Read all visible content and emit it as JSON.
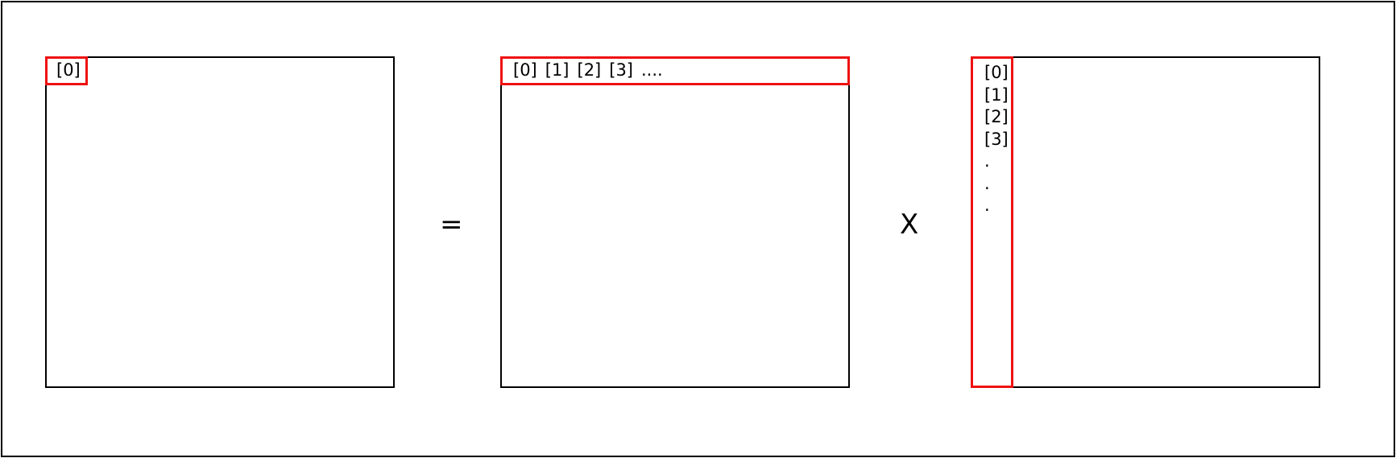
{
  "result_matrix": {
    "highlighted_index": "[0]"
  },
  "equals_sign": "=",
  "left_matrix": {
    "row_indices": [
      "[0]",
      "[1]",
      "[2]",
      "[3]",
      "...."
    ]
  },
  "times_sign": "X",
  "right_matrix": {
    "column_indices": [
      "[0]",
      "[1]",
      "[2]",
      "[3]",
      ".",
      ".",
      "."
    ]
  },
  "colors": {
    "highlight": "#ee1111",
    "outline": "#000000",
    "background": "#ffffff"
  }
}
